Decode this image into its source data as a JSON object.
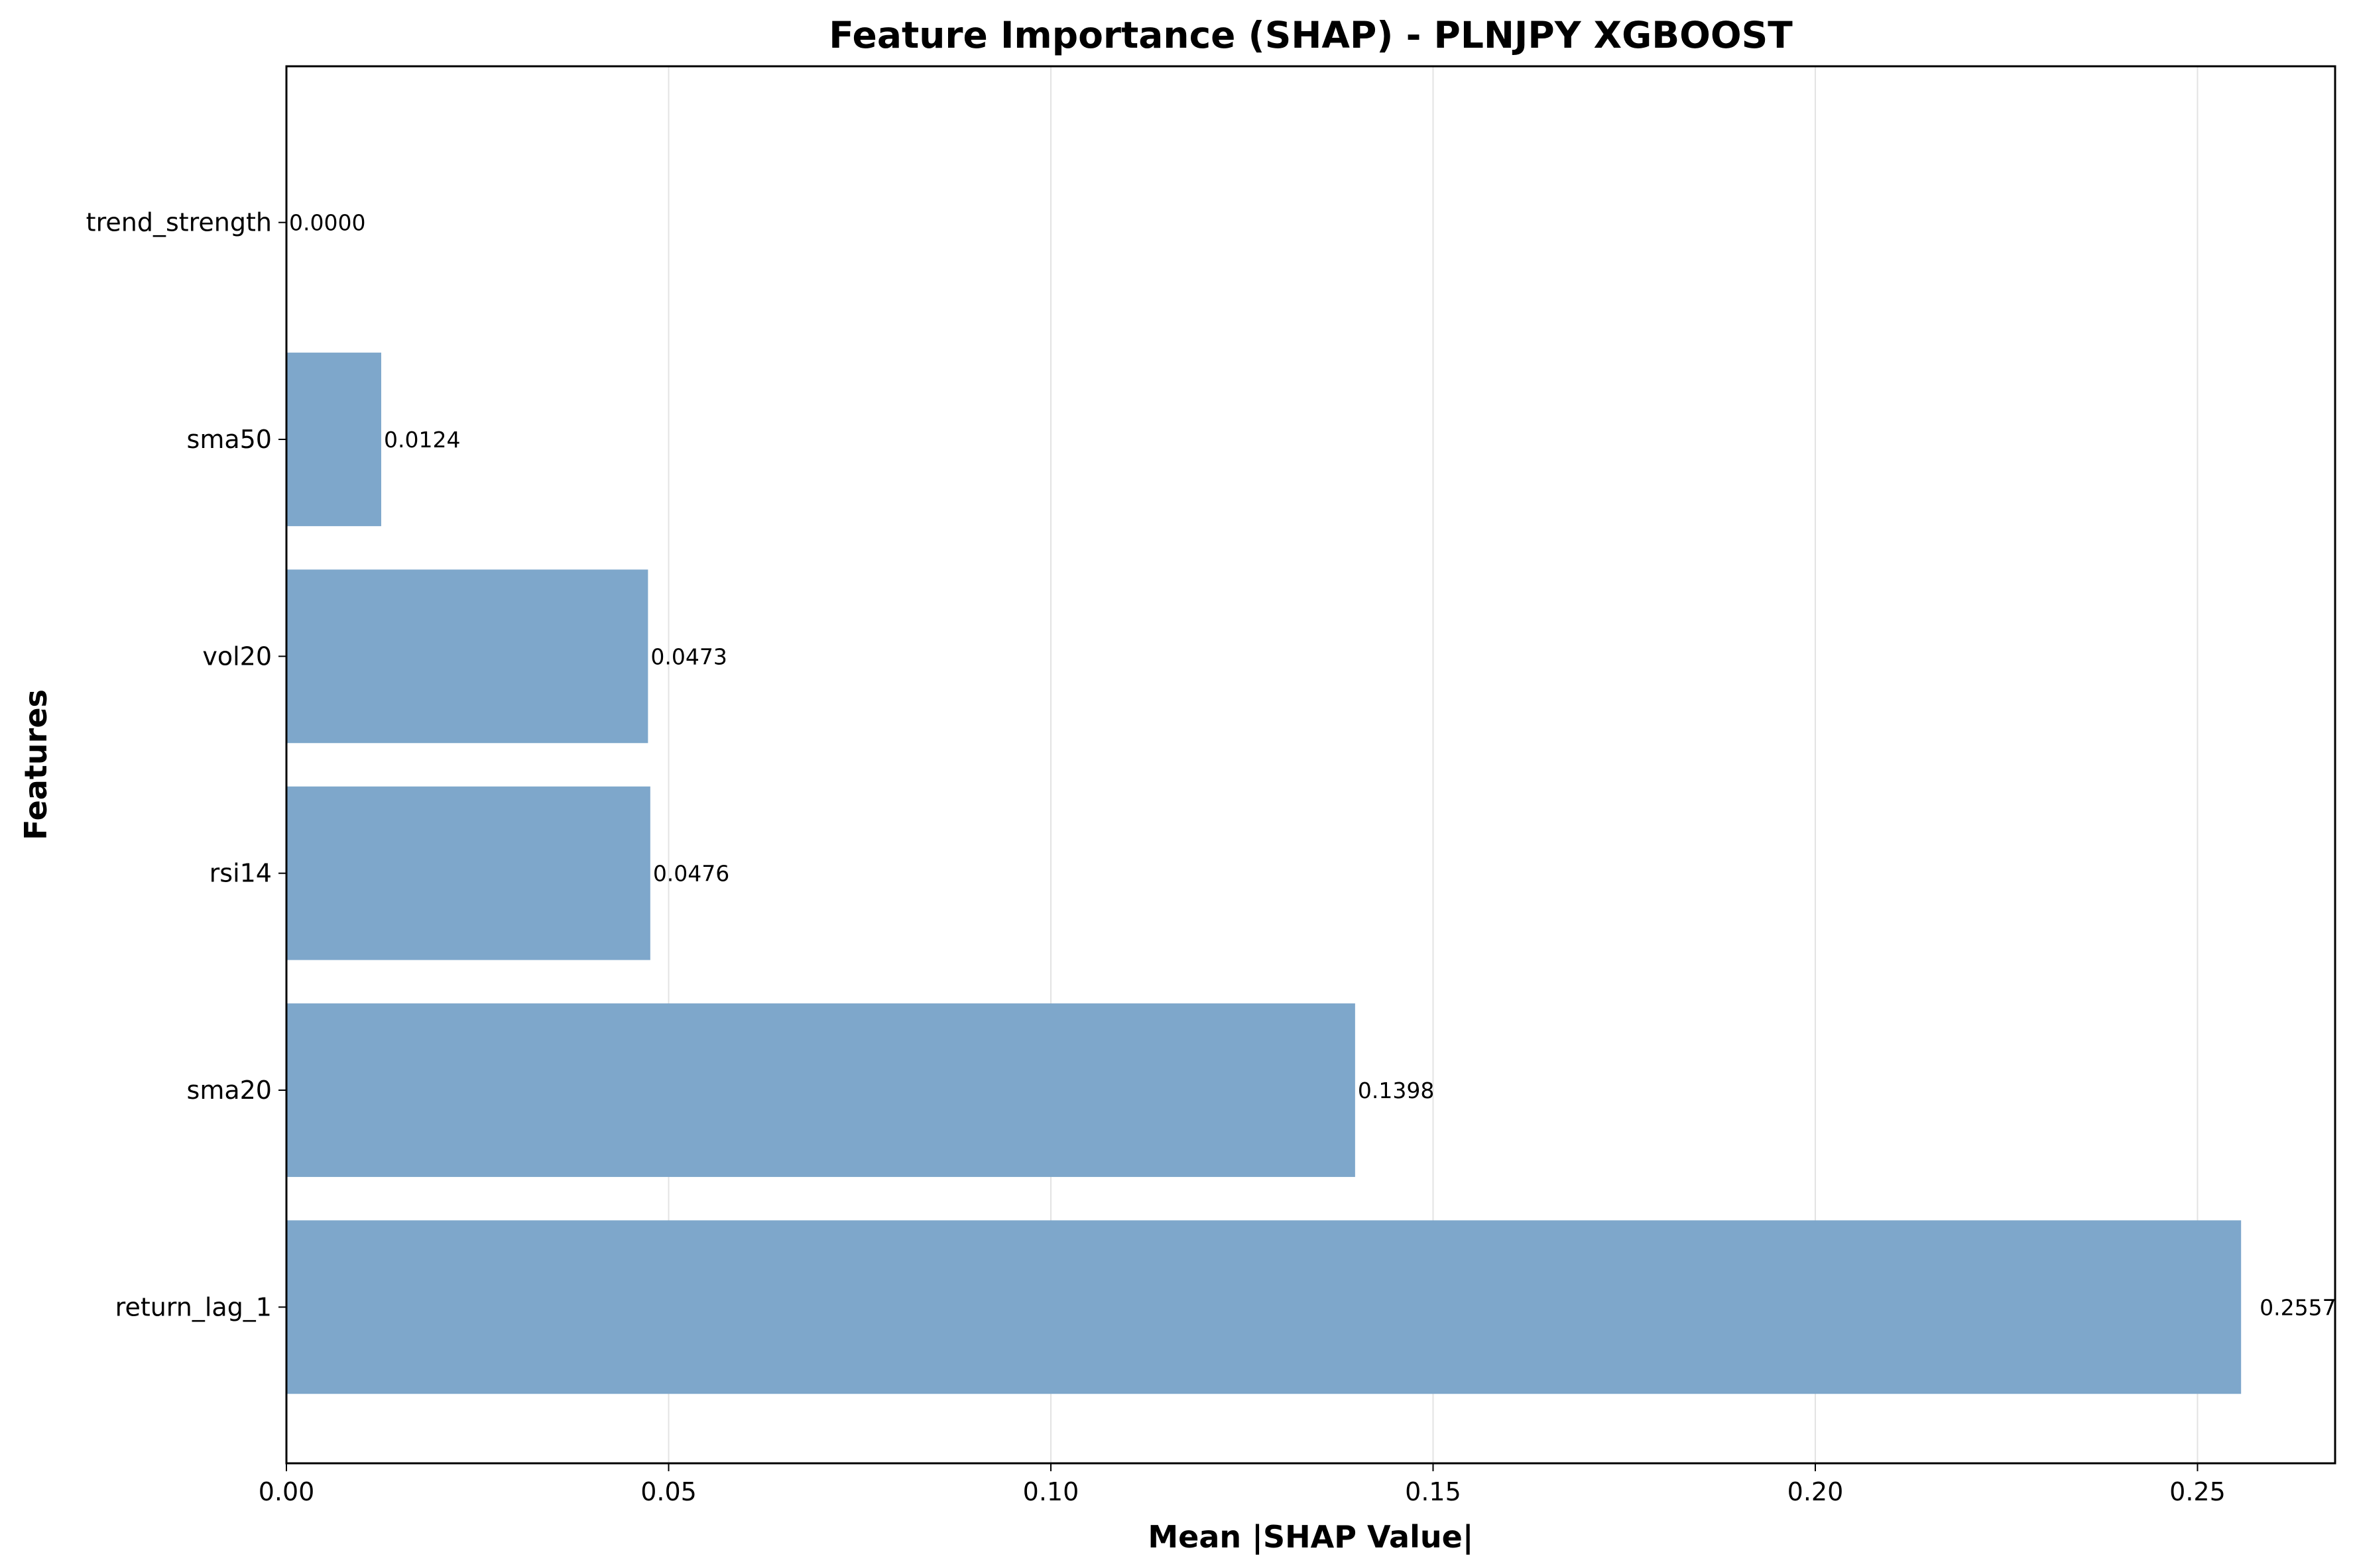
{
  "chart_data": {
    "type": "bar",
    "orientation": "horizontal",
    "title": "Feature Importance (SHAP) - PLNJPY XGBOOST",
    "xlabel": "Mean |SHAP Value|",
    "ylabel": "Features",
    "categories": [
      "trend_strength",
      "sma50",
      "vol20",
      "rsi14",
      "sma20",
      "return_lag_1"
    ],
    "values": [
      0.0,
      0.0124,
      0.0473,
      0.0476,
      0.1398,
      0.2557
    ],
    "value_labels": [
      "0.0000",
      "0.0124",
      "0.0473",
      "0.0476",
      "0.1398",
      "0.2557"
    ],
    "xlim": [
      0.0,
      0.268
    ],
    "xticks": [
      0.0,
      0.05,
      0.1,
      0.15,
      0.2,
      0.25
    ],
    "xtick_labels": [
      "0.00",
      "0.05",
      "0.10",
      "0.15",
      "0.20",
      "0.25"
    ],
    "grid": "x",
    "legend": "none",
    "bar_color": "#7ea7cb",
    "grid_color": "#e3e3e3"
  }
}
